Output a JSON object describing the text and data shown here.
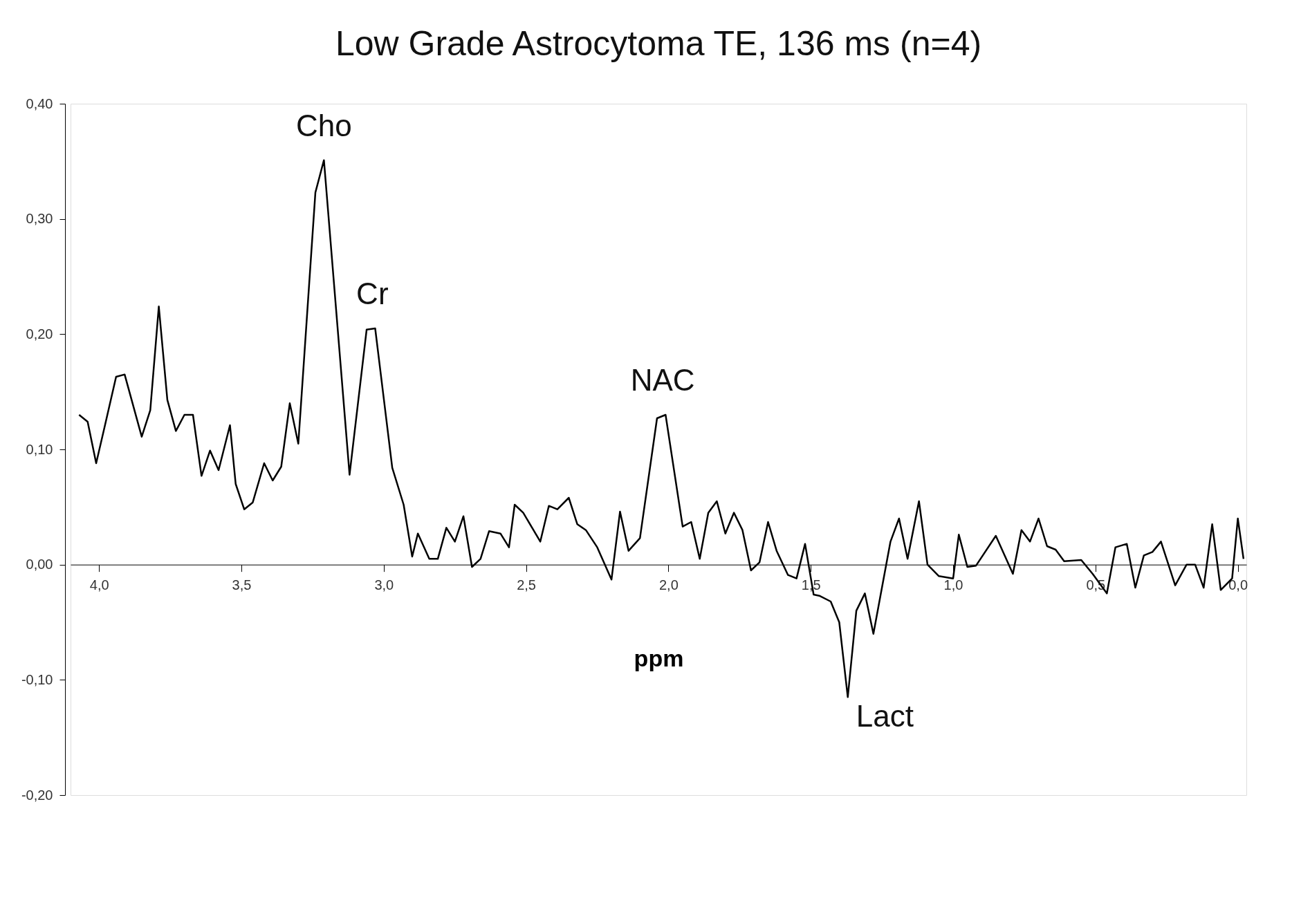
{
  "chart_data": {
    "type": "line",
    "title": "Low Grade Astrocytoma TE, 136 ms (n=4)",
    "xlabel": "ppm",
    "x": [
      4.07,
      4.04,
      4.01,
      3.98,
      3.94,
      3.91,
      3.85,
      3.82,
      3.79,
      3.76,
      3.73,
      3.7,
      3.67,
      3.64,
      3.61,
      3.58,
      3.54,
      3.52,
      3.49,
      3.46,
      3.42,
      3.39,
      3.36,
      3.33,
      3.3,
      3.24,
      3.21,
      3.12,
      3.06,
      3.03,
      2.97,
      2.93,
      2.9,
      2.88,
      2.84,
      2.81,
      2.78,
      2.75,
      2.72,
      2.69,
      2.66,
      2.63,
      2.59,
      2.56,
      2.54,
      2.51,
      2.45,
      2.42,
      2.39,
      2.35,
      2.32,
      2.29,
      2.25,
      2.2,
      2.17,
      2.14,
      2.1,
      2.04,
      2.01,
      1.95,
      1.92,
      1.89,
      1.86,
      1.83,
      1.8,
      1.77,
      1.74,
      1.71,
      1.68,
      1.65,
      1.62,
      1.58,
      1.55,
      1.52,
      1.49,
      1.47,
      1.43,
      1.4,
      1.37,
      1.34,
      1.31,
      1.28,
      1.22,
      1.19,
      1.16,
      1.12,
      1.09,
      1.05,
      1.0,
      0.98,
      0.95,
      0.92,
      0.85,
      0.79,
      0.76,
      0.73,
      0.7,
      0.67,
      0.64,
      0.61,
      0.55,
      0.51,
      0.46,
      0.43,
      0.39,
      0.36,
      0.33,
      0.3,
      0.27,
      0.22,
      0.18,
      0.15,
      0.12,
      0.09,
      0.06,
      0.02,
      0.0,
      -0.02
    ],
    "series": [
      {
        "color": "#000000",
        "values": [
          0.13,
          0.124,
          0.088,
          0.12,
          0.163,
          0.165,
          0.111,
          0.134,
          0.224,
          0.143,
          0.116,
          0.13,
          0.13,
          0.077,
          0.099,
          0.082,
          0.121,
          0.07,
          0.048,
          0.054,
          0.088,
          0.073,
          0.085,
          0.14,
          0.105,
          0.323,
          0.351,
          0.078,
          0.204,
          0.205,
          0.084,
          0.052,
          0.007,
          0.027,
          0.005,
          0.005,
          0.032,
          0.02,
          0.042,
          -0.002,
          0.005,
          0.029,
          0.027,
          0.015,
          0.052,
          0.045,
          0.02,
          0.051,
          0.048,
          0.058,
          0.035,
          0.03,
          0.015,
          -0.013,
          0.046,
          0.012,
          0.023,
          0.127,
          0.13,
          0.033,
          0.037,
          0.005,
          0.045,
          0.055,
          0.027,
          0.045,
          0.03,
          -0.005,
          0.002,
          0.037,
          0.012,
          -0.009,
          -0.012,
          0.018,
          -0.026,
          -0.027,
          -0.032,
          -0.05,
          -0.115,
          -0.04,
          -0.025,
          -0.06,
          0.02,
          0.04,
          0.005,
          0.055,
          0.0,
          -0.01,
          -0.012,
          0.026,
          -0.002,
          -0.001,
          0.025,
          -0.008,
          0.03,
          0.02,
          0.04,
          0.016,
          0.013,
          0.003,
          0.004,
          -0.008,
          -0.025,
          0.015,
          0.018,
          -0.02,
          0.008,
          0.011,
          0.02,
          -0.018,
          0.0,
          0.0,
          -0.02,
          0.035,
          -0.022,
          -0.012,
          0.04,
          0.005
        ]
      }
    ],
    "xlim": [
      4.1,
      -0.03
    ],
    "xticks": [
      {
        "value": 4.0,
        "label": "4,0"
      },
      {
        "value": 3.5,
        "label": "3,5"
      },
      {
        "value": 3.0,
        "label": "3,0"
      },
      {
        "value": 2.5,
        "label": "2,5"
      },
      {
        "value": 2.0,
        "label": "2,0"
      },
      {
        "value": 1.5,
        "label": "1,5"
      },
      {
        "value": 1.0,
        "label": "1,0"
      },
      {
        "value": 0.5,
        "label": "0,5"
      },
      {
        "value": 0.0,
        "label": "0,0"
      }
    ],
    "ylim": [
      -0.2,
      0.4
    ],
    "yticks": [
      {
        "value": -0.2,
        "label": "-0,20"
      },
      {
        "value": -0.1,
        "label": "-0,10"
      },
      {
        "value": 0.0,
        "label": "0,00"
      },
      {
        "value": 0.1,
        "label": "0,10"
      },
      {
        "value": 0.2,
        "label": "0,20"
      },
      {
        "value": 0.3,
        "label": "0,30"
      },
      {
        "value": 0.4,
        "label": "0,40"
      }
    ],
    "annotations": [
      {
        "text": "Cho",
        "x": 3.21,
        "y": 0.351
      },
      {
        "text": "Cr",
        "x": 3.04,
        "y": 0.205
      },
      {
        "text": "NAC",
        "x": 2.02,
        "y": 0.13
      },
      {
        "text": "Lact",
        "x": 1.37,
        "y": -0.115
      }
    ],
    "grid": false,
    "marker": "none",
    "line_style": "solid"
  }
}
